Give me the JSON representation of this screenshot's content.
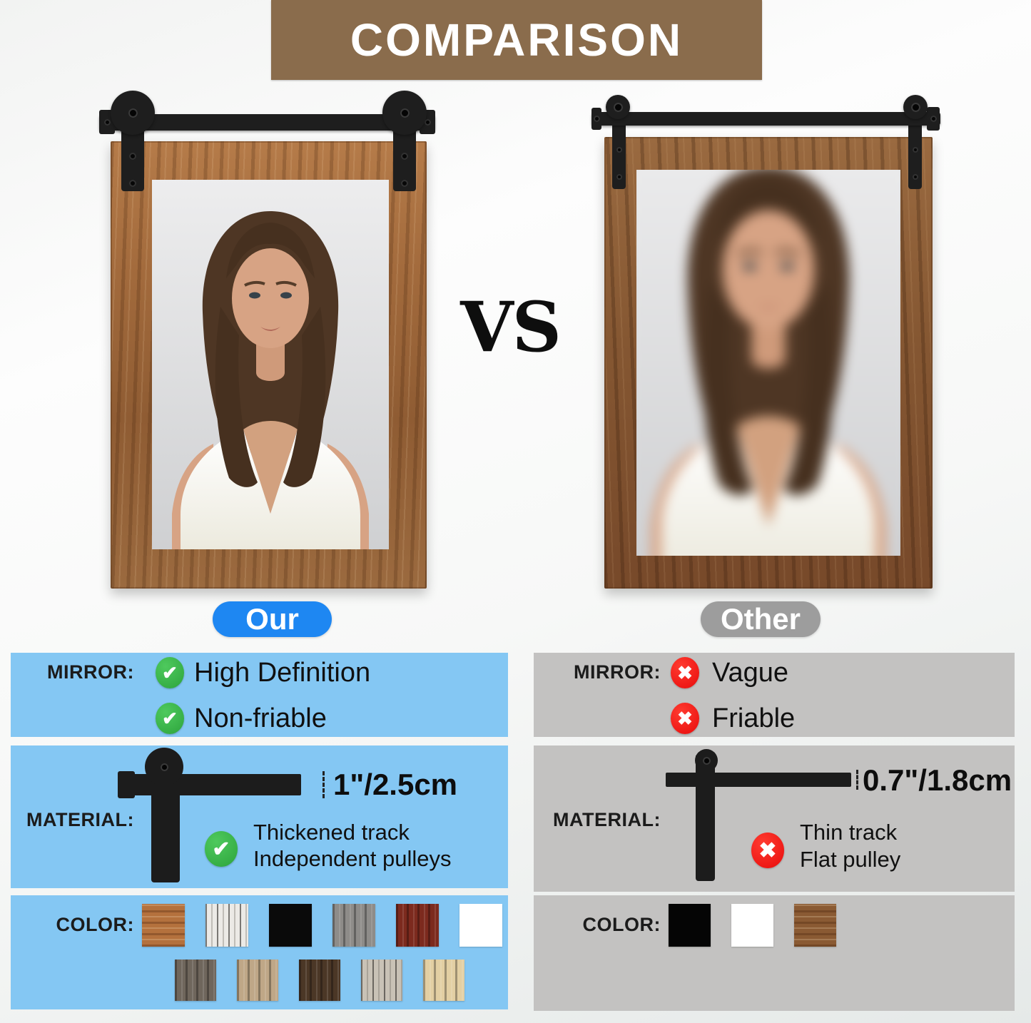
{
  "banner": {
    "title": "COMPARISON",
    "bg_color": "#8a6c4c"
  },
  "vs_label": "VS",
  "icons": {
    "check": "✔",
    "cross": "✖"
  },
  "ours": {
    "pill_label": "Our",
    "pill_color": "#1e87f2",
    "panel_color": "#84c7f3",
    "mirror": {
      "label": "MIRROR:",
      "features": [
        {
          "icon": "check",
          "text": "High Definition"
        },
        {
          "icon": "check",
          "text": "Non-friable"
        }
      ]
    },
    "material": {
      "label": "MATERIAL:",
      "thickness": "1\"/2.5cm",
      "icon": "check",
      "feature_line1": "Thickened track",
      "feature_line2": "Independent pulleys"
    },
    "color": {
      "label": "COLOR:",
      "swatches_row1": [
        {
          "name": "rustic-brown-wood",
          "color": "#b4713d",
          "texture": "wood-h"
        },
        {
          "name": "whitewash-wood",
          "color": "#eceae6",
          "texture": "streaks"
        },
        {
          "name": "black",
          "color": "#0a0a0a",
          "texture": "plain"
        },
        {
          "name": "gray-wood",
          "color": "#8e8c89",
          "texture": "wood-v"
        },
        {
          "name": "red-mahogany",
          "color": "#7c2a1e",
          "texture": "wood-v"
        },
        {
          "name": "white",
          "color": "#ffffff",
          "texture": "plain"
        }
      ],
      "swatches_row2": [
        {
          "name": "weathered-gray-wood",
          "color": "#6f665c",
          "texture": "wood-v"
        },
        {
          "name": "driftwood-brown-wood",
          "color": "#bfa787",
          "texture": "wood-v"
        },
        {
          "name": "dark-walnut-wood",
          "color": "#4b3726",
          "texture": "wood-v"
        },
        {
          "name": "whitewash-gray-wood",
          "color": "#c9c2b6",
          "texture": "streaks"
        },
        {
          "name": "natural-pine-wood",
          "color": "#e3cfa3",
          "texture": "wood-v"
        }
      ]
    }
  },
  "other": {
    "pill_label": "Other",
    "pill_color": "#9d9d9d",
    "panel_color": "#c3c2c1",
    "mirror": {
      "label": "MIRROR:",
      "features": [
        {
          "icon": "cross",
          "text": "Vague"
        },
        {
          "icon": "cross",
          "text": "Friable"
        }
      ]
    },
    "material": {
      "label": "MATERIAL:",
      "thickness": "0.7\"/1.8cm",
      "icon": "cross",
      "feature_line1": "Thin track",
      "feature_line2": "Flat pulley"
    },
    "color": {
      "label": "COLOR:",
      "swatches": [
        {
          "name": "black",
          "color": "#050505",
          "texture": "plain"
        },
        {
          "name": "white",
          "color": "#ffffff",
          "texture": "plain"
        },
        {
          "name": "brown-wood",
          "color": "#8a5a33",
          "texture": "wood-h"
        }
      ]
    }
  }
}
